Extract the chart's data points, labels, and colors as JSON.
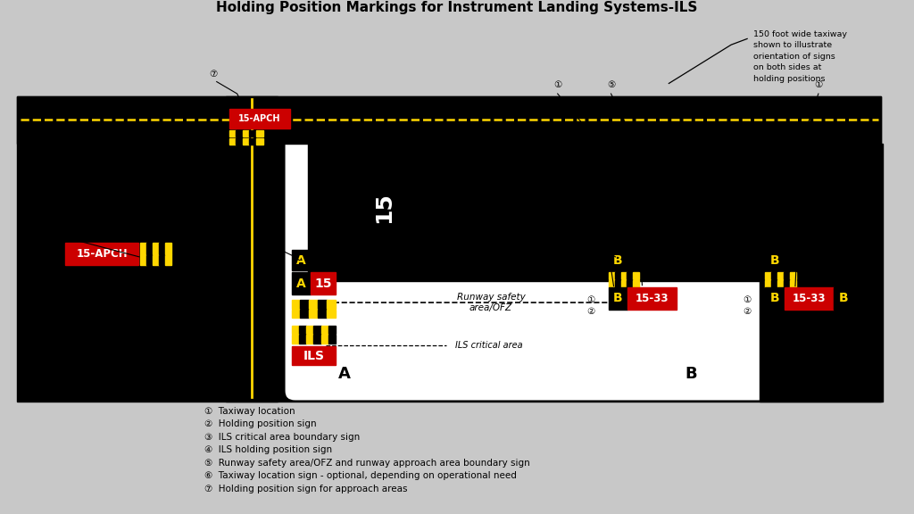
{
  "title": "Holding Position Markings for Instrument Landing Systems-ILS",
  "bg_color": "#c8c8c8",
  "black": "#000000",
  "white": "#ffffff",
  "yellow": "#FFD700",
  "red": "#CC0000",
  "legend_items": [
    {
      "num": "1",
      "text": "Taxiway location"
    },
    {
      "num": "2",
      "text": "Holding position sign"
    },
    {
      "num": "3",
      "text": "ILS critical area boundary sign"
    },
    {
      "num": "4",
      "text": "ILS holding position sign"
    },
    {
      "num": "5",
      "text": "Runway safety area/OFZ and runway approach area boundary sign"
    },
    {
      "num": "6",
      "text": "Taxiway location sign - optional, depending on operational need"
    },
    {
      "num": "7",
      "text": "Holding position sign for approach areas"
    }
  ],
  "note_text": "150 foot wide taxiway\nshown to illustrate\norientation of signs\non both sides at\nholding positions"
}
